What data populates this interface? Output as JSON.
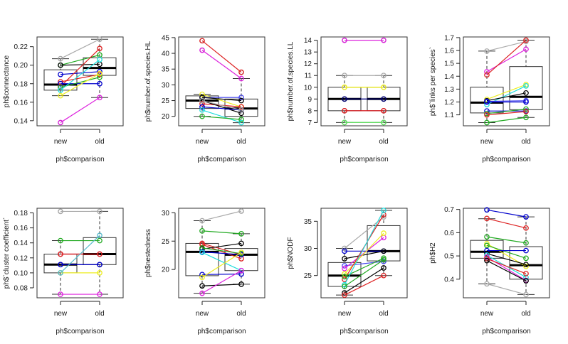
{
  "chart_data": [
    {
      "type": "boxplot-paired",
      "title": "",
      "xlabel": "ph$comparison",
      "ylabel": "ph$connectance",
      "categories": [
        "new",
        "old"
      ],
      "yticks": [
        "0.14",
        "0.16",
        "0.18",
        "0.20",
        "0.22"
      ],
      "ylim": [
        0.1345,
        0.2305
      ],
      "boxes": [
        {
          "category": "new",
          "whisker_low": 0.167,
          "q1": 0.173,
          "median": 0.179,
          "q3": 0.195,
          "whisker_high": 0.207,
          "outliers": [
            0.138
          ]
        },
        {
          "category": "old",
          "whisker_low": 0.165,
          "q1": 0.189,
          "median": 0.197,
          "q3": 0.208,
          "whisker_high": 0.228,
          "outliers": []
        }
      ],
      "series": [
        {
          "color": "#aaaaaa",
          "values": [
            0.207,
            0.228
          ]
        },
        {
          "color": "#22aa22",
          "values": [
            0.2,
            0.211
          ]
        },
        {
          "color": "#000000",
          "values": [
            0.2,
            0.201
          ]
        },
        {
          "color": "#0000cc",
          "values": [
            0.19,
            0.193
          ]
        },
        {
          "color": "#dd2222",
          "values": [
            0.182,
            0.19
          ]
        },
        {
          "color": "#dd2222",
          "values": [
            0.177,
            0.218
          ]
        },
        {
          "color": "#0000cc",
          "values": [
            0.18,
            0.18
          ]
        },
        {
          "color": "#22aa22",
          "values": [
            0.176,
            0.187
          ]
        },
        {
          "color": "#22dddd",
          "values": [
            0.173,
            0.206
          ]
        },
        {
          "color": "#eeee22",
          "values": [
            0.167,
            0.191
          ]
        },
        {
          "color": "#dd22dd",
          "values": [
            0.138,
            0.165
          ]
        }
      ]
    },
    {
      "type": "boxplot-paired",
      "title": "",
      "xlabel": "ph$comparison",
      "ylabel": "ph$number.of.species.HL",
      "categories": [
        "new",
        "old"
      ],
      "yticks": [
        "20",
        "25",
        "30",
        "35",
        "40",
        "45"
      ],
      "ylim": [
        17,
        45.2
      ],
      "boxes": [
        {
          "category": "new",
          "whisker_low": 20,
          "q1": 22.5,
          "median": 25,
          "q3": 26.5,
          "whisker_high": 27,
          "outliers": [
            41,
            44
          ]
        },
        {
          "category": "old",
          "whisker_low": 18,
          "q1": 20,
          "median": 22.5,
          "q3": 25.5,
          "whisker_high": 32,
          "outliers": [
            34
          ]
        }
      ],
      "series": [
        {
          "color": "#dd2222",
          "values": [
            44,
            34
          ]
        },
        {
          "color": "#dd22dd",
          "values": [
            41,
            32
          ]
        },
        {
          "color": "#eeee22",
          "values": [
            27,
            23
          ]
        },
        {
          "color": "#4444ee",
          "values": [
            26,
            26
          ]
        },
        {
          "color": "#000000",
          "values": [
            26,
            25
          ]
        },
        {
          "color": "#dd2222",
          "values": [
            24,
            23
          ]
        },
        {
          "color": "#000000",
          "values": [
            25,
            21
          ]
        },
        {
          "color": "#0000cc",
          "values": [
            23,
            22
          ]
        },
        {
          "color": "#aaaaaa",
          "values": [
            25,
            22
          ]
        },
        {
          "color": "#22dddd",
          "values": [
            22,
            18
          ]
        },
        {
          "color": "#22aa22",
          "values": [
            20,
            19
          ]
        }
      ]
    },
    {
      "type": "boxplot-paired",
      "title": "",
      "xlabel": "ph$comparison",
      "ylabel": "ph$number.of.species.LL",
      "categories": [
        "new",
        "old"
      ],
      "yticks": [
        "7",
        "8",
        "9",
        "10",
        "11",
        "12",
        "13",
        "14"
      ],
      "ylim": [
        6.72,
        14.28
      ],
      "boxes": [
        {
          "category": "new",
          "whisker_low": 7,
          "q1": 8,
          "median": 9,
          "q3": 10,
          "whisker_high": 11,
          "outliers": [
            14
          ]
        },
        {
          "category": "old",
          "whisker_low": 7,
          "q1": 8,
          "median": 9,
          "q3": 10,
          "whisker_high": 11,
          "outliers": [
            14
          ]
        }
      ],
      "series": [
        {
          "color": "#dd22dd",
          "values": [
            14,
            14
          ]
        },
        {
          "color": "#aaaaaa",
          "values": [
            11,
            11
          ]
        },
        {
          "color": "#cccc44",
          "values": [
            10,
            10
          ]
        },
        {
          "color": "#eeee22",
          "values": [
            10,
            10
          ]
        },
        {
          "color": "#0000cc",
          "values": [
            9,
            9
          ]
        },
        {
          "color": "#000066",
          "values": [
            9,
            9
          ]
        },
        {
          "color": "#aa1133",
          "values": [
            8,
            8
          ]
        },
        {
          "color": "#dd2222",
          "values": [
            8,
            8
          ]
        },
        {
          "color": "#22aa22",
          "values": [
            7,
            7
          ]
        },
        {
          "color": "#66dd66",
          "values": [
            7,
            7
          ]
        }
      ]
    },
    {
      "type": "boxplot-paired",
      "title": "",
      "xlabel": "ph$comparison",
      "ylabel": "ph$`links per species`",
      "categories": [
        "new",
        "old"
      ],
      "yticks": [
        "1.1",
        "1.2",
        "1.3",
        "1.4",
        "1.5",
        "1.6",
        "1.7"
      ],
      "ylim": [
        1.015,
        1.705
      ],
      "boxes": [
        {
          "category": "new",
          "whisker_low": 1.04,
          "q1": 1.115,
          "median": 1.195,
          "q3": 1.315,
          "whisker_high": 1.595,
          "outliers": []
        },
        {
          "category": "old",
          "whisker_low": 1.08,
          "q1": 1.14,
          "median": 1.24,
          "q3": 1.475,
          "whisker_high": 1.68,
          "outliers": []
        }
      ],
      "series": [
        {
          "color": "#aaaaaa",
          "values": [
            1.595,
            1.67
          ]
        },
        {
          "color": "#dd22dd",
          "values": [
            1.435,
            1.61
          ]
        },
        {
          "color": "#dd2222",
          "values": [
            1.41,
            1.68
          ]
        },
        {
          "color": "#eeee22",
          "values": [
            1.22,
            1.335
          ]
        },
        {
          "color": "#22dddd",
          "values": [
            1.18,
            1.325
          ]
        },
        {
          "color": "#000000",
          "values": [
            1.21,
            1.27
          ]
        },
        {
          "color": "#4444ee",
          "values": [
            1.205,
            1.21
          ]
        },
        {
          "color": "#0000cc",
          "values": [
            1.2,
            1.2
          ]
        },
        {
          "color": "#0000cc",
          "values": [
            1.13,
            1.13
          ]
        },
        {
          "color": "#22aa22",
          "values": [
            1.11,
            1.145
          ]
        },
        {
          "color": "#dd2222",
          "values": [
            1.1,
            1.125
          ]
        },
        {
          "color": "#22aa22",
          "values": [
            1.04,
            1.08
          ]
        }
      ]
    },
    {
      "type": "boxplot-paired",
      "title": "",
      "xlabel": "ph$comparison",
      "ylabel": "ph$`cluster coefficient`",
      "categories": [
        "new",
        "old"
      ],
      "yticks": [
        "0.08",
        "0.10",
        "0.12",
        "0.14",
        "0.16",
        "0.18"
      ],
      "ylim": [
        0.0667,
        0.1862
      ],
      "boxes": [
        {
          "category": "new",
          "whisker_low": 0.0714,
          "q1": 0.1,
          "median": 0.111,
          "q3": 0.125,
          "whisker_high": 0.143,
          "outliers": [
            0.182
          ]
        },
        {
          "category": "old",
          "whisker_low": 0.0714,
          "q1": 0.111,
          "median": 0.125,
          "q3": 0.147,
          "whisker_high": 0.182,
          "outliers": []
        }
      ],
      "series": [
        {
          "color": "#aaaaaa",
          "values": [
            0.182,
            0.182
          ]
        },
        {
          "color": "#22aa22",
          "values": [
            0.143,
            0.143
          ]
        },
        {
          "color": "#aa1133",
          "values": [
            0.125,
            0.125
          ]
        },
        {
          "color": "#dd2222",
          "values": [
            0.125,
            0.125
          ]
        },
        {
          "color": "#000066",
          "values": [
            0.111,
            0.111
          ]
        },
        {
          "color": "#0000cc",
          "values": [
            0.111,
            0.111
          ]
        },
        {
          "color": "#eeee22",
          "values": [
            0.1,
            0.1
          ]
        },
        {
          "color": "#55bbcc",
          "values": [
            0.1,
            0.15
          ]
        },
        {
          "color": "#dd22dd",
          "values": [
            0.0714,
            0.0714
          ]
        }
      ]
    },
    {
      "type": "boxplot-paired",
      "title": "",
      "xlabel": "ph$comparison",
      "ylabel": "ph$nestedness",
      "categories": [
        "new",
        "old"
      ],
      "yticks": [
        "20",
        "25",
        "30"
      ],
      "ylim": [
        15.0,
        30.8
      ],
      "boxes": [
        {
          "category": "new",
          "whisker_low": 15.8,
          "q1": 18.9,
          "median": 23.1,
          "q3": 24.6,
          "whisker_high": 28.6,
          "outliers": []
        },
        {
          "category": "old",
          "whisker_low": 17.4,
          "q1": 19.8,
          "median": 22.6,
          "q3": 23.7,
          "whisker_high": 26.3,
          "outliers": [
            30.3
          ]
        }
      ],
      "series": [
        {
          "color": "#aaaaaa",
          "values": [
            28.6,
            30.3
          ]
        },
        {
          "color": "#22aa22",
          "values": [
            26.8,
            26.3
          ]
        },
        {
          "color": "#dd2222",
          "values": [
            24.6,
            22.6
          ]
        },
        {
          "color": "#dd2222",
          "values": [
            24.4,
            21.9
          ]
        },
        {
          "color": "#000000",
          "values": [
            23.6,
            24.6
          ]
        },
        {
          "color": "#22aa22",
          "values": [
            23.8,
            22.8
          ]
        },
        {
          "color": "#0000cc",
          "values": [
            23.1,
            22.6
          ]
        },
        {
          "color": "#22dddd",
          "values": [
            23.0,
            19.8
          ]
        },
        {
          "color": "#0000cc",
          "values": [
            19.1,
            19.2
          ]
        },
        {
          "color": "#eeee22",
          "values": [
            18.6,
            23.0
          ]
        },
        {
          "color": "#000000",
          "values": [
            17.1,
            17.4
          ]
        },
        {
          "color": "#dd22dd",
          "values": [
            15.8,
            19.8
          ]
        }
      ]
    },
    {
      "type": "boxplot-paired",
      "title": "",
      "xlabel": "ph$comparison",
      "ylabel": "ph$NODF",
      "categories": [
        "new",
        "old"
      ],
      "yticks": [
        "25",
        "30",
        "35"
      ],
      "ylim": [
        20.9,
        37.4
      ],
      "boxes": [
        {
          "category": "new",
          "whisker_low": 21.4,
          "q1": 23.0,
          "median": 25.0,
          "q3": 27.4,
          "whisker_high": 30.0,
          "outliers": []
        },
        {
          "category": "old",
          "whisker_low": 25.0,
          "q1": 27.7,
          "median": 29.5,
          "q3": 34.2,
          "whisker_high": 37.0,
          "outliers": []
        }
      ],
      "series": [
        {
          "color": "#aaaaaa",
          "values": [
            30.0,
            35.8
          ]
        },
        {
          "color": "#0000cc",
          "values": [
            29.5,
            29.5
          ]
        },
        {
          "color": "#000000",
          "values": [
            28.1,
            29.5
          ]
        },
        {
          "color": "#4444ee",
          "values": [
            26.8,
            27.6
          ]
        },
        {
          "color": "#dd22dd",
          "values": [
            26.3,
            32.0
          ]
        },
        {
          "color": "#eeee22",
          "values": [
            25.3,
            32.8
          ]
        },
        {
          "color": "#dd2222",
          "values": [
            24.3,
            36.2
          ]
        },
        {
          "color": "#22aa22",
          "values": [
            24.8,
            28.2
          ]
        },
        {
          "color": "#22dddd",
          "values": [
            23.3,
            37.0
          ]
        },
        {
          "color": "#22aa22",
          "values": [
            23.0,
            27.9
          ]
        },
        {
          "color": "#000000",
          "values": [
            21.8,
            26.4
          ]
        },
        {
          "color": "#dd2222",
          "values": [
            21.4,
            25.0
          ]
        }
      ]
    },
    {
      "type": "boxplot-paired",
      "title": "",
      "xlabel": "ph$comparison",
      "ylabel": "ph$H2",
      "categories": [
        "new",
        "old"
      ],
      "yticks": [
        "0.4",
        "0.5",
        "0.6",
        "0.7"
      ],
      "ylim": [
        0.32,
        0.705
      ],
      "boxes": [
        {
          "category": "new",
          "whisker_low": 0.38,
          "q1": 0.49,
          "median": 0.518,
          "q3": 0.567,
          "whisker_high": 0.66,
          "outliers": [
            0.698
          ]
        },
        {
          "category": "old",
          "whisker_low": 0.334,
          "q1": 0.4,
          "median": 0.46,
          "q3": 0.54,
          "whisker_high": 0.668,
          "outliers": []
        }
      ],
      "series": [
        {
          "color": "#0000cc",
          "values": [
            0.698,
            0.668
          ]
        },
        {
          "color": "#dd2222",
          "values": [
            0.661,
            0.62
          ]
        },
        {
          "color": "#22aa22",
          "values": [
            0.582,
            0.556
          ]
        },
        {
          "color": "#eeee22",
          "values": [
            0.553,
            0.455
          ]
        },
        {
          "color": "#22aa22",
          "values": [
            0.545,
            0.49
          ]
        },
        {
          "color": "#0000cc",
          "values": [
            0.523,
            0.523
          ]
        },
        {
          "color": "#000000",
          "values": [
            0.51,
            0.463
          ]
        },
        {
          "color": "#22dddd",
          "values": [
            0.503,
            0.408
          ]
        },
        {
          "color": "#dd22dd",
          "values": [
            0.495,
            0.395
          ]
        },
        {
          "color": "#dd2222",
          "values": [
            0.488,
            0.424
          ]
        },
        {
          "color": "#000000",
          "values": [
            0.48,
            0.393
          ]
        },
        {
          "color": "#aaaaaa",
          "values": [
            0.38,
            0.334
          ]
        }
      ]
    }
  ]
}
